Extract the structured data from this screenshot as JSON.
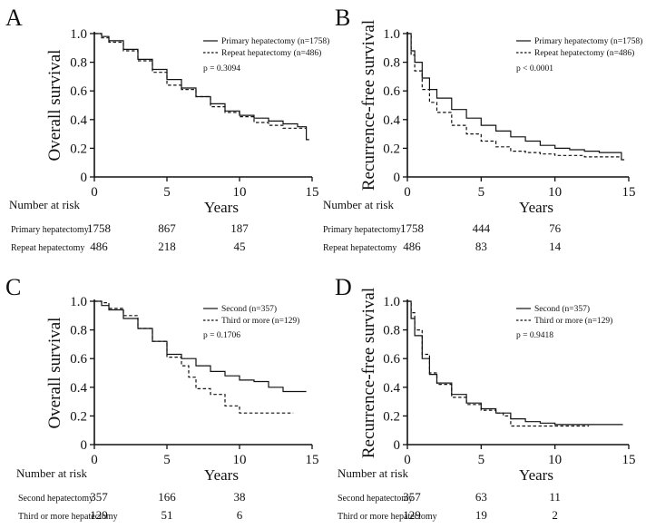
{
  "chart_data": [
    {
      "panel": "A",
      "type": "line",
      "ylabel": "Overall survival",
      "xlabel": "Years",
      "xlim": [
        0,
        15
      ],
      "ylim": [
        0,
        1.0
      ],
      "xticks": [
        "0",
        "5",
        "10",
        "15"
      ],
      "yticks": [
        "0",
        "0.2",
        "0.4",
        "0.6",
        "0.8",
        "1.0"
      ],
      "legend_position": "top-right",
      "pvalue": "p = 0.3094",
      "series": [
        {
          "name": "Primary hepatectomy (n=1758)",
          "style": "solid",
          "x": [
            0,
            0.5,
            1,
            2,
            3,
            4,
            5,
            6,
            7,
            8,
            9,
            10,
            11,
            12,
            13,
            14,
            14.6,
            14.6,
            14.8
          ],
          "y": [
            1.0,
            0.98,
            0.95,
            0.89,
            0.82,
            0.75,
            0.68,
            0.62,
            0.56,
            0.51,
            0.46,
            0.43,
            0.41,
            0.39,
            0.37,
            0.35,
            0.35,
            0.26,
            0.26
          ]
        },
        {
          "name": "Repeat hepatectomy (n=486)",
          "style": "dashed",
          "x": [
            0,
            0.5,
            1,
            2,
            3,
            4,
            5,
            6,
            7,
            8,
            9,
            10,
            11,
            12,
            13,
            14,
            14.6
          ],
          "y": [
            1.0,
            0.97,
            0.94,
            0.88,
            0.81,
            0.73,
            0.64,
            0.61,
            0.56,
            0.49,
            0.45,
            0.42,
            0.38,
            0.36,
            0.34,
            0.34,
            0.34
          ]
        }
      ],
      "risk_table": {
        "title": "Number at risk",
        "rows": [
          {
            "label": "Primary hepatectomy",
            "values": [
              "1758",
              "867",
              "187"
            ]
          },
          {
            "label": "Repeat hepatectomy",
            "values": [
              "486",
              "218",
              "45"
            ]
          }
        ]
      }
    },
    {
      "panel": "B",
      "type": "line",
      "ylabel": "Recurrence-free survival",
      "xlabel": "Years",
      "xlim": [
        0,
        15
      ],
      "ylim": [
        0,
        1.0
      ],
      "xticks": [
        "0",
        "5",
        "10",
        "15"
      ],
      "yticks": [
        "0",
        "0.2",
        "0.4",
        "0.6",
        "0.8",
        "1.0"
      ],
      "legend_position": "top-right",
      "pvalue": "p < 0.0001",
      "series": [
        {
          "name": "Primary hepatectomy (n=1758)",
          "style": "solid",
          "x": [
            0,
            0.25,
            0.5,
            1,
            1.5,
            2,
            3,
            4,
            5,
            6,
            7,
            8,
            9,
            10,
            11,
            12,
            13,
            14,
            14.5,
            14.5,
            14.7
          ],
          "y": [
            1.0,
            0.88,
            0.8,
            0.69,
            0.61,
            0.55,
            0.47,
            0.41,
            0.36,
            0.32,
            0.28,
            0.25,
            0.22,
            0.2,
            0.19,
            0.18,
            0.17,
            0.17,
            0.17,
            0.12,
            0.12
          ]
        },
        {
          "name": "Repeat hepatectomy (n=486)",
          "style": "dashed",
          "x": [
            0,
            0.25,
            0.5,
            1,
            1.5,
            2,
            3,
            4,
            5,
            6,
            7,
            8,
            9,
            10,
            11,
            12,
            13,
            14,
            14.5
          ],
          "y": [
            1.0,
            0.85,
            0.74,
            0.61,
            0.52,
            0.45,
            0.36,
            0.3,
            0.25,
            0.21,
            0.18,
            0.17,
            0.16,
            0.15,
            0.15,
            0.14,
            0.14,
            0.14,
            0.14
          ]
        }
      ],
      "risk_table": {
        "title": "Number at risk",
        "rows": [
          {
            "label": "Primary hepatectomy",
            "values": [
              "1758",
              "444",
              "76"
            ]
          },
          {
            "label": "Repeat hepatectomy",
            "values": [
              "486",
              "83",
              "14"
            ]
          }
        ]
      }
    },
    {
      "panel": "C",
      "type": "line",
      "ylabel": "Overall survival",
      "xlabel": "Years",
      "xlim": [
        0,
        15
      ],
      "ylim": [
        0,
        1.0
      ],
      "xticks": [
        "0",
        "5",
        "10",
        "15"
      ],
      "yticks": [
        "0",
        "0.2",
        "0.4",
        "0.6",
        "0.8",
        "1.0"
      ],
      "legend_position": "top-right",
      "pvalue": "p = 0.1706",
      "series": [
        {
          "name": "Second (n=357)",
          "style": "solid",
          "x": [
            0,
            0.5,
            1,
            2,
            3,
            4,
            5,
            6,
            7,
            8,
            9,
            10,
            11,
            12,
            13,
            14,
            14.6
          ],
          "y": [
            1.0,
            0.97,
            0.94,
            0.88,
            0.81,
            0.72,
            0.63,
            0.6,
            0.55,
            0.51,
            0.48,
            0.45,
            0.44,
            0.4,
            0.37,
            0.37,
            0.37
          ]
        },
        {
          "name": "Third or more (n=129)",
          "style": "dashed",
          "x": [
            0,
            0.5,
            1,
            2,
            3,
            4,
            5,
            6,
            6.5,
            7,
            8,
            9,
            10,
            11,
            12,
            13,
            13.7
          ],
          "y": [
            1.0,
            0.99,
            0.95,
            0.9,
            0.81,
            0.72,
            0.61,
            0.55,
            0.47,
            0.39,
            0.35,
            0.27,
            0.22,
            0.22,
            0.22,
            0.22,
            0.22
          ]
        }
      ],
      "risk_table": {
        "title": "Number at risk",
        "rows": [
          {
            "label": "Second hepatectomy",
            "values": [
              "357",
              "166",
              "38"
            ]
          },
          {
            "label": "Third or more hepatectomy",
            "values": [
              "129",
              "51",
              "6"
            ]
          }
        ]
      }
    },
    {
      "panel": "D",
      "type": "line",
      "ylabel": "Recurrence-free survival",
      "xlabel": "Years",
      "xlim": [
        0,
        15
      ],
      "ylim": [
        0,
        1.0
      ],
      "xticks": [
        "0",
        "5",
        "10",
        "15"
      ],
      "yticks": [
        "0",
        "0.2",
        "0.4",
        "0.6",
        "0.8",
        "1.0"
      ],
      "legend_position": "top-right",
      "pvalue": "p = 0.9418",
      "series": [
        {
          "name": "Second (n=357)",
          "style": "solid",
          "x": [
            0,
            0.25,
            0.5,
            1,
            1.5,
            2,
            3,
            4,
            5,
            6,
            7,
            8,
            9,
            10,
            11,
            12,
            13,
            14,
            14.6
          ],
          "y": [
            1.0,
            0.88,
            0.76,
            0.6,
            0.49,
            0.43,
            0.35,
            0.29,
            0.25,
            0.22,
            0.18,
            0.16,
            0.15,
            0.14,
            0.14,
            0.14,
            0.14,
            0.14,
            0.14
          ]
        },
        {
          "name": "Third or more (n=129)",
          "style": "dashed",
          "x": [
            0,
            0.25,
            0.5,
            1,
            1.5,
            2,
            3,
            4,
            5,
            6,
            6.5,
            7,
            8,
            9,
            10,
            11,
            12,
            12.3
          ],
          "y": [
            1.0,
            0.92,
            0.8,
            0.63,
            0.5,
            0.42,
            0.33,
            0.28,
            0.24,
            0.22,
            0.2,
            0.13,
            0.13,
            0.13,
            0.13,
            0.13,
            0.13,
            0.13
          ]
        }
      ],
      "risk_table": {
        "title": "Number at risk",
        "rows": [
          {
            "label": "Second hepatectomy",
            "values": [
              "357",
              "63",
              "11"
            ]
          },
          {
            "label": "Third or more hepatectomy",
            "values": [
              "129",
              "19",
              "2"
            ]
          }
        ]
      }
    }
  ]
}
